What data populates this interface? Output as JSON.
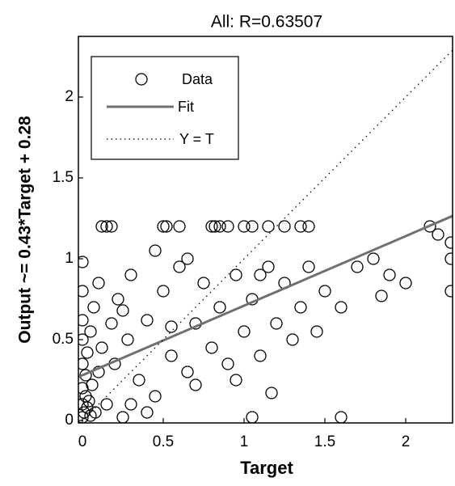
{
  "chart_data": {
    "type": "scatter",
    "title": "All: R=0.63507",
    "x_label": "Target",
    "y_label": "Output ~= 0.43*Target + 0.28",
    "xlim": [
      -0.025,
      2.29
    ],
    "ylim": [
      -0.015,
      2.375
    ],
    "xticks": [
      0,
      0.5,
      1,
      1.5,
      2
    ],
    "yticks": [
      0,
      0.5,
      1,
      1.5,
      2
    ],
    "legend": "top-left",
    "series": [
      {
        "name": "Data",
        "color": "#000000",
        "x": [
          0,
          0,
          0,
          0,
          0,
          0,
          0,
          0,
          0.01,
          0.02,
          0.02,
          0.03,
          0.03,
          0.04,
          0.05,
          0.05,
          0.06,
          0.07,
          0.08,
          0.1,
          0.1,
          0.12,
          0.15,
          0.18,
          0.2,
          0.22,
          0.25,
          0.28,
          0.3,
          0.35,
          0.4,
          0.45,
          0.5,
          0.55,
          0.6,
          0.65,
          0.7,
          0.75,
          0.8,
          0.85,
          0.9,
          0.95,
          1.0,
          1.05,
          1.1,
          1.15,
          1.2,
          1.25,
          1.3,
          1.35,
          1.4,
          1.45,
          1.5,
          1.6,
          1.7,
          1.8,
          1.85,
          1.9,
          2.0,
          2.15,
          2.2,
          2.28,
          2.28,
          2.28,
          0.12,
          0.15,
          0.18,
          0.5,
          0.52,
          0.6,
          0.8,
          0.82,
          0.85,
          0.9,
          1.0,
          1.05,
          1.15,
          1.25,
          1.35,
          1.4,
          1.05,
          1.6,
          1.17,
          0.4,
          0.25,
          0.55,
          0.7,
          0.3,
          0.95,
          1.1,
          0.45,
          0.65
        ],
        "values": [
          0.02,
          0.1,
          0.2,
          0.35,
          0.5,
          0.62,
          0.8,
          0.98,
          0.05,
          0.15,
          0.28,
          0.08,
          0.42,
          0.12,
          0.03,
          0.55,
          0.22,
          0.7,
          0.05,
          0.3,
          0.85,
          0.45,
          0.1,
          0.6,
          0.35,
          0.75,
          0.02,
          0.5,
          0.9,
          0.25,
          0.62,
          0.15,
          0.8,
          0.4,
          0.95,
          0.3,
          0.6,
          0.85,
          0.45,
          0.7,
          0.35,
          0.9,
          0.55,
          0.75,
          0.4,
          0.95,
          0.6,
          0.85,
          0.5,
          0.7,
          0.95,
          0.55,
          0.8,
          0.7,
          0.95,
          1.0,
          0.77,
          0.9,
          0.85,
          1.2,
          1.15,
          1.0,
          0.8,
          1.1,
          1.2,
          1.2,
          1.2,
          1.2,
          1.2,
          1.2,
          1.2,
          1.2,
          1.2,
          1.2,
          1.2,
          1.2,
          1.2,
          1.2,
          1.2,
          1.2,
          0.02,
          0.02,
          0.17,
          0.05,
          0.68,
          0.58,
          0.22,
          0.1,
          0.25,
          0.9,
          1.05,
          1.0
        ]
      }
    ],
    "fit": {
      "name": "Fit",
      "color": "#707070",
      "slope": 0.43,
      "intercept": 0.28
    },
    "reference_line": {
      "name": "Y = T",
      "color": "#000000"
    }
  }
}
